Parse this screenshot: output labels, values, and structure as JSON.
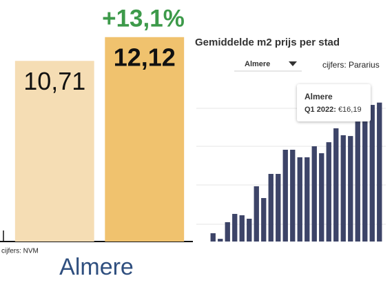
{
  "chart_data": [
    {
      "type": "bar",
      "annotation": "+13,1%",
      "label": "Almere",
      "source": "cijfers: NVM",
      "categories": [
        null,
        null
      ],
      "values": [
        10.71,
        12.12
      ],
      "value_labels": [
        "10,71",
        "12,12"
      ],
      "colors": [
        "#f5ddb4",
        "#f0c26e"
      ],
      "ylim": [
        0,
        14.3
      ]
    },
    {
      "type": "bar",
      "title": "Gemiddelde m2 prijs per stad",
      "dropdown": "Almere",
      "source": "cijfers: Pararius",
      "tooltip": {
        "title": "Almere",
        "label": "Q1 2022:",
        "value": "€16,19"
      },
      "categories": [
        null,
        null,
        null,
        null,
        null,
        null,
        null,
        null,
        null,
        null,
        null,
        null,
        null,
        null,
        null,
        null,
        null,
        null,
        null,
        null,
        null,
        null,
        null,
        null
      ],
      "values": [
        9.43,
        9.14,
        10.0,
        10.43,
        10.36,
        10.18,
        11.86,
        11.25,
        12.5,
        12.5,
        13.75,
        13.75,
        13.36,
        13.36,
        13.93,
        13.57,
        14.14,
        14.86,
        14.5,
        14.46,
        15.21,
        15.75,
        16.07,
        16.19
      ],
      "color": "#3d4468",
      "ylim": [
        9,
        16.5
      ]
    }
  ]
}
